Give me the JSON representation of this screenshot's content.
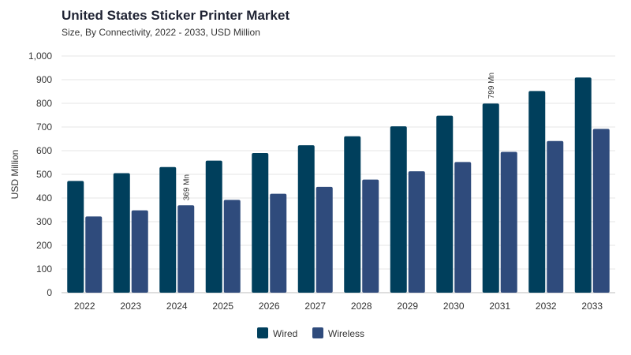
{
  "colors": {
    "wired": "#003f5c",
    "wireless": "#2f4b7c",
    "grid": "#e6e6e6",
    "axis": "#bdbdbd"
  },
  "chart_data": {
    "type": "bar",
    "title": "United States Sticker Printer Market",
    "subtitle": "Size, By Connectivity, 2022 - 2033, USD Million",
    "xlabel": "",
    "ylabel": "USD Million",
    "ylim": [
      0,
      1000
    ],
    "yticks": [
      "0",
      "100",
      "200",
      "300",
      "400",
      "500",
      "600",
      "700",
      "800",
      "900",
      "1,000"
    ],
    "grid": true,
    "legend_position": "bottom",
    "categories": [
      "2022",
      "2023",
      "2024",
      "2025",
      "2026",
      "2027",
      "2028",
      "2029",
      "2030",
      "2031",
      "2032",
      "2033"
    ],
    "series": [
      {
        "name": "Wired",
        "values": [
          472,
          505,
          531,
          558,
          590,
          623,
          661,
          703,
          748,
          799,
          852,
          909
        ]
      },
      {
        "name": "Wireless",
        "values": [
          322,
          348,
          369,
          392,
          418,
          447,
          478,
          513,
          552,
          595,
          641,
          692
        ]
      }
    ],
    "annotations": [
      {
        "series": "Wireless",
        "category": "2024",
        "text": "369 Mn"
      },
      {
        "series": "Wired",
        "category": "2031",
        "text": "799 Mn"
      }
    ]
  }
}
